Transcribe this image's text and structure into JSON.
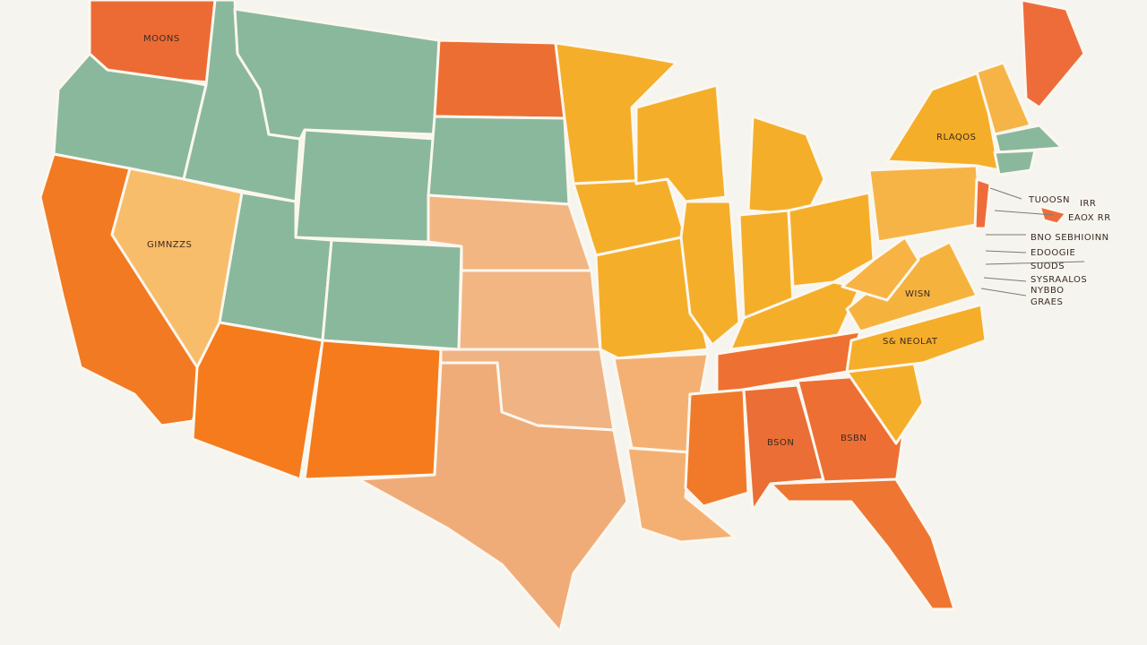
{
  "labels": [
    "MOONS",
    "RLAQOS",
    "GIMNZZS",
    "TUOOSN",
    "IRR",
    "EAOX RR",
    "BNO SEBHIOINN",
    "EDOOGIE",
    "SUODS",
    "SYSRAALOS",
    "NYBBO",
    "GRAES",
    "WISN",
    "S& NEOLAT",
    "BSON",
    "BSBN"
  ]
}
